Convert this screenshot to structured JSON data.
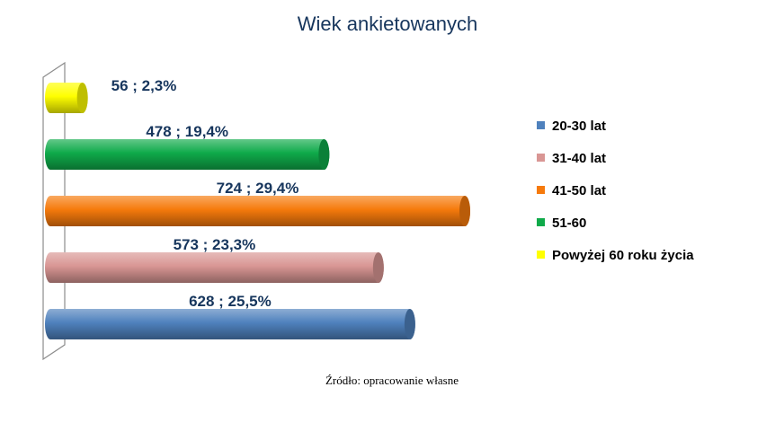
{
  "chart_data": {
    "type": "bar",
    "orientation": "horizontal",
    "title": "Wiek ankietowanych",
    "categories": [
      "20-30 lat",
      "31-40 lat",
      "41-50 lat",
      "51-60",
      "Powyżej 60 roku życia"
    ],
    "values": [
      628,
      573,
      724,
      478,
      56
    ],
    "percents": [
      "25,5%",
      "23,3%",
      "29,4%",
      "19,4%",
      "2,3%"
    ],
    "data_labels": [
      "628 ; 25,5%",
      "573 ; 23,3%",
      "724 ; 29,4%",
      "478 ; 19,4%",
      "56 ; 2,3%"
    ],
    "colors": [
      "#4f81bd",
      "#d99694",
      "#f67a0c",
      "#0faa4a",
      "#ffff00"
    ],
    "legend_position": "right",
    "grid": false,
    "xlim": [
      0,
      724
    ]
  },
  "source_note": "Źródło: opracowanie własne"
}
